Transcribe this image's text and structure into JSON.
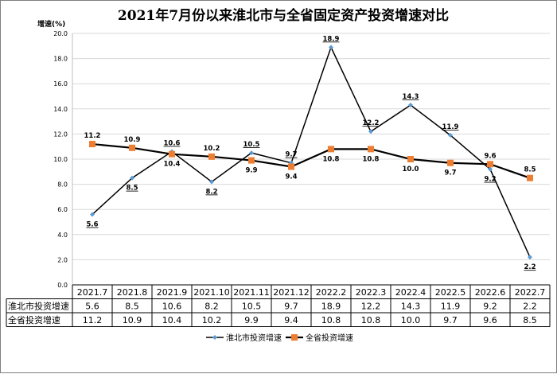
{
  "chart_data": {
    "type": "line",
    "title": "2021年7月份以来淮北市与全省固定资产投资增速对比",
    "ylabel": "增速(%)",
    "ylim": [
      0,
      20
    ],
    "yticks": [
      "0.0",
      "2.0",
      "4.0",
      "6.0",
      "8.0",
      "10.0",
      "12.0",
      "14.0",
      "16.0",
      "18.0",
      "20.0"
    ],
    "grid": true,
    "legend_position": "bottom",
    "categories": [
      "2021.7",
      "2021.8",
      "2021.9",
      "2021.10",
      "2021.11",
      "2021.12",
      "2022.2",
      "2022.3",
      "2022.4",
      "2022.5",
      "2022.6",
      "2022.7"
    ],
    "series": [
      {
        "name": "淮北市投资增速",
        "values": [
          5.6,
          8.5,
          10.6,
          8.2,
          10.5,
          9.7,
          18.9,
          12.2,
          14.3,
          11.9,
          9.2,
          2.2
        ],
        "labels": [
          "5.6",
          "8.5",
          "10.6",
          "8.2",
          "10.5",
          "9.7",
          "18.9",
          "12.2",
          "14.3",
          "11.9",
          "9.2",
          "2.2"
        ],
        "color": "#5b9bd5",
        "marker": "diamond"
      },
      {
        "name": "全省投资增速",
        "values": [
          11.2,
          10.9,
          10.4,
          10.2,
          9.9,
          9.4,
          10.8,
          10.8,
          10.0,
          9.7,
          9.6,
          8.5
        ],
        "labels": [
          "11.2",
          "10.9",
          "10.4",
          "10.2",
          "9.9",
          "9.4",
          "10.8",
          "10.8",
          "10.0",
          "9.7",
          "9.6",
          "8.5"
        ],
        "color": "#ed7d31",
        "marker": "square"
      }
    ]
  }
}
